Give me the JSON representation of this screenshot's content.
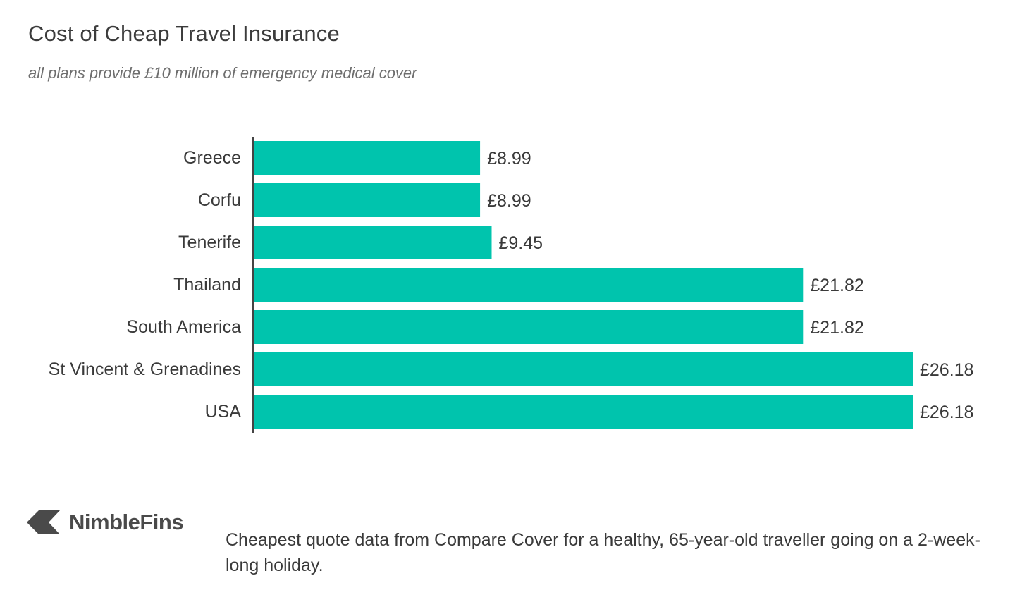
{
  "title": "Cost of Cheap Travel Insurance",
  "subtitle": "all plans provide £10 million of emergency medical cover",
  "chart_data": {
    "type": "bar",
    "orientation": "horizontal",
    "categories": [
      "Greece",
      "Corfu",
      "Tenerife",
      "Thailand",
      "South America",
      "St Vincent & Grenadines",
      "USA"
    ],
    "values": [
      8.99,
      8.99,
      9.45,
      21.82,
      21.82,
      26.18,
      26.18
    ],
    "value_labels": [
      "£8.99",
      "£8.99",
      "£9.45",
      "£21.82",
      "£21.82",
      "£26.18",
      "£26.18"
    ],
    "xlim": [
      0,
      26.18
    ],
    "grid": false,
    "bar_color": "#00c4ad"
  },
  "logo": {
    "name": "NimbleFins",
    "icon": "nimblefins-arrow-icon"
  },
  "footnote": "Cheapest quote data from Compare Cover for a healthy, 65-year-old traveller going on a 2-week-long holiday."
}
